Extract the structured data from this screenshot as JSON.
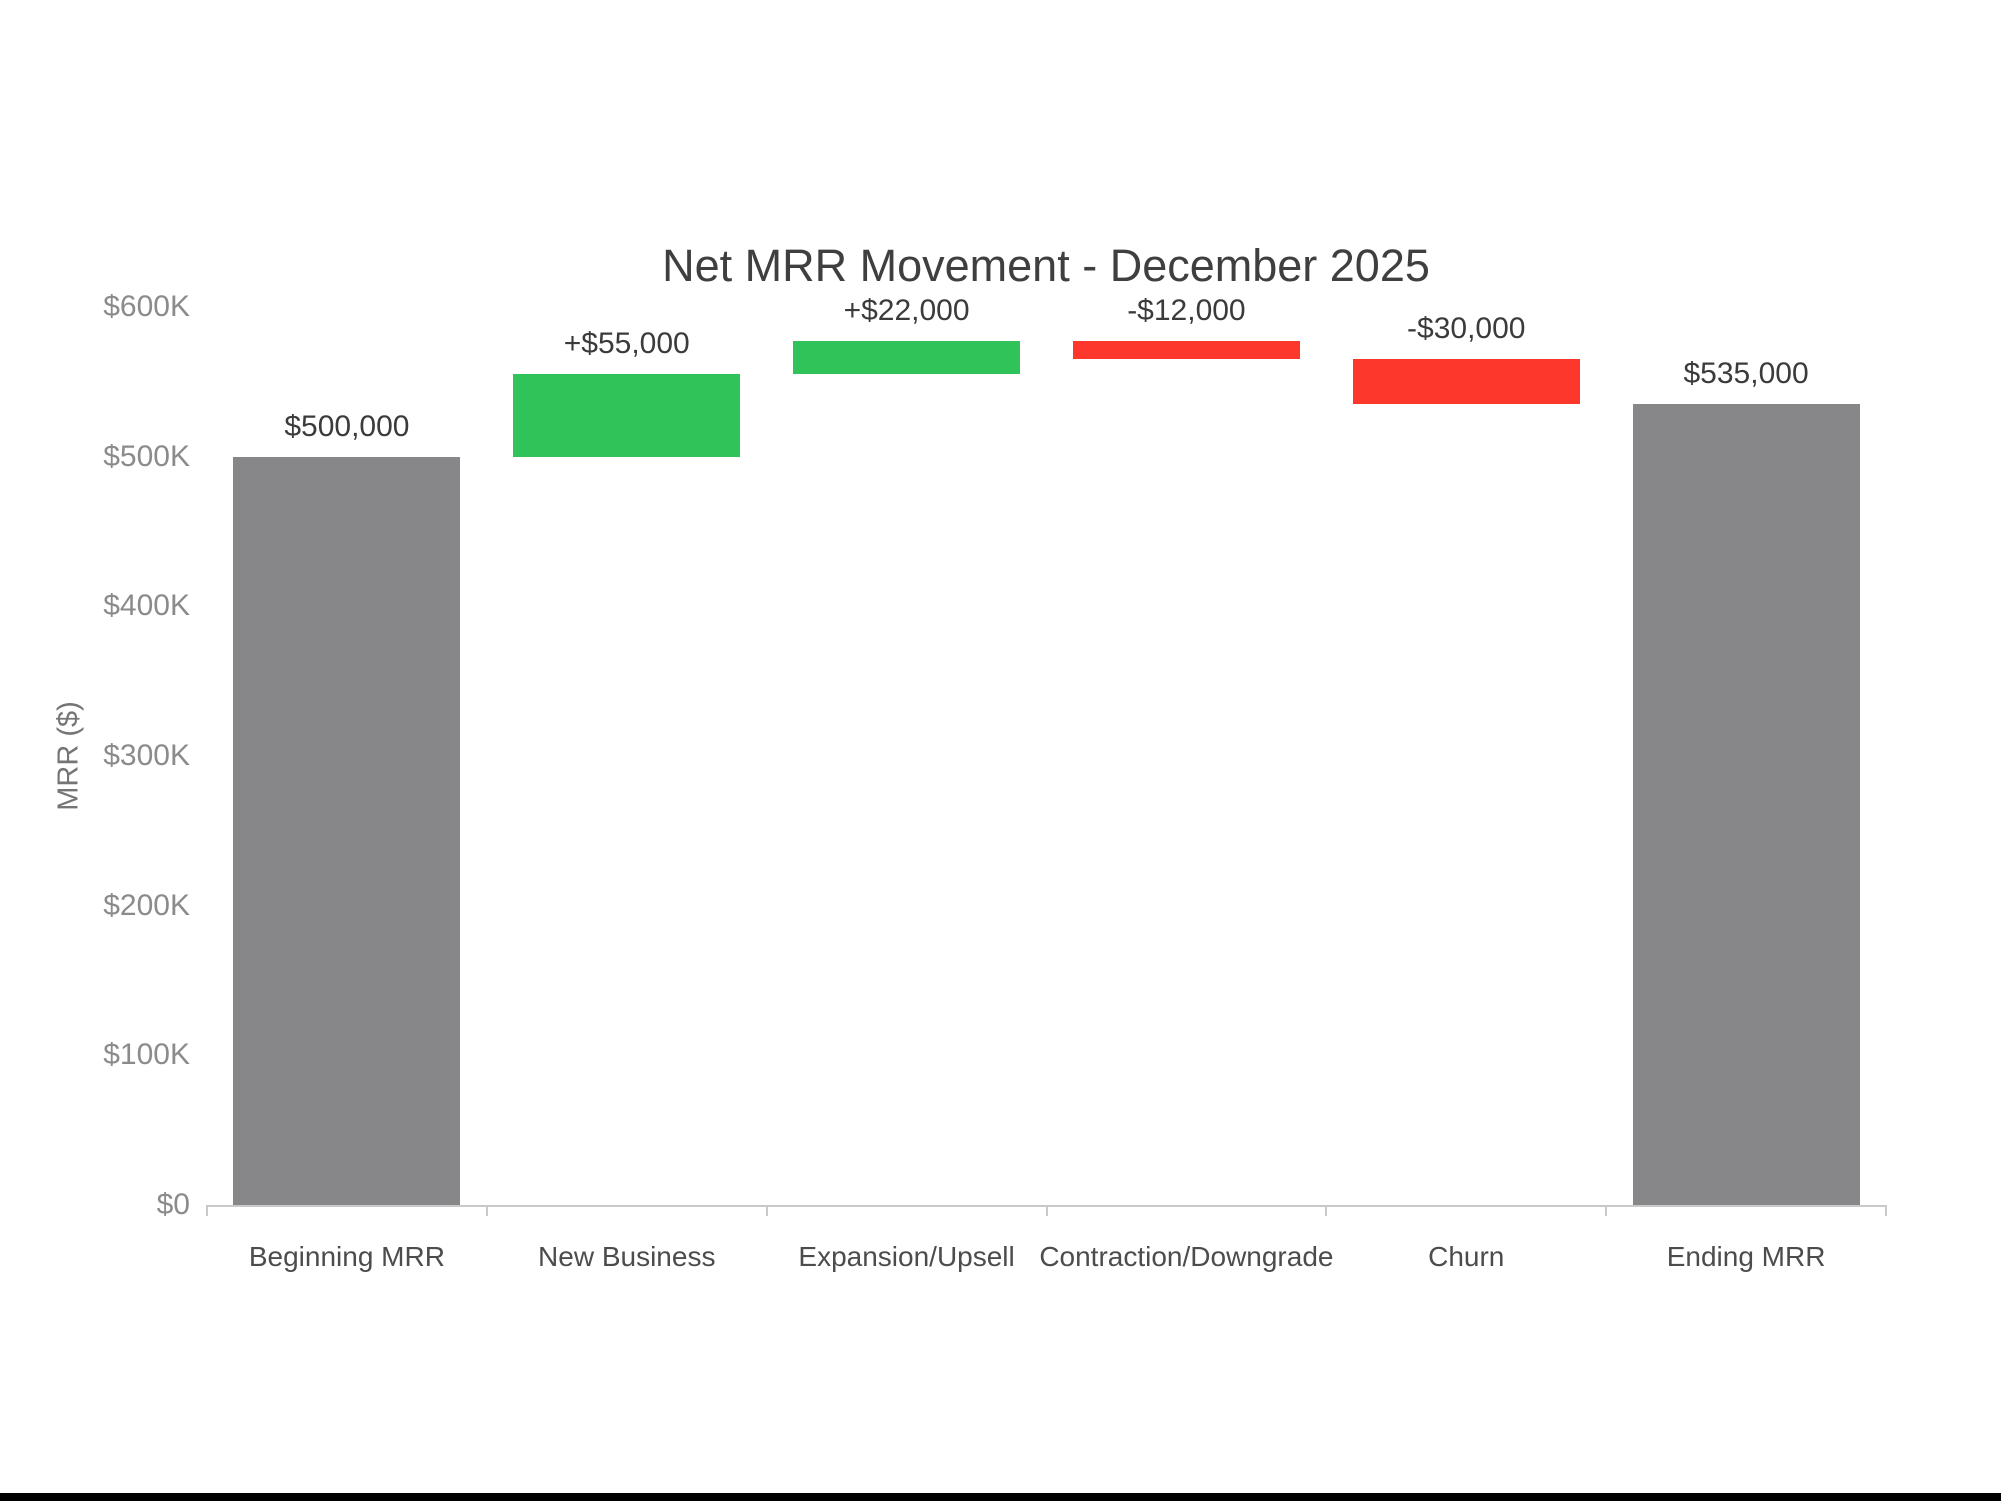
{
  "chart_data": {
    "type": "bar",
    "subtype": "waterfall",
    "title": "Net MRR Movement - December 2025",
    "ylabel": "MRR ($)",
    "xlabel": "",
    "ylim": [
      0,
      600000
    ],
    "grid": false,
    "legend": false,
    "yticks": [
      {
        "label": "$0",
        "value": 0
      },
      {
        "label": "$100K",
        "value": 100000
      },
      {
        "label": "$200K",
        "value": 200000
      },
      {
        "label": "$300K",
        "value": 300000
      },
      {
        "label": "$400K",
        "value": 400000
      },
      {
        "label": "$500K",
        "value": 500000
      },
      {
        "label": "$600K",
        "value": 600000
      }
    ],
    "categories": [
      "Beginning MRR",
      "New Business",
      "Expansion/Upsell",
      "Contraction/Downgrade",
      "Churn",
      "Ending MRR"
    ],
    "bars": [
      {
        "category": "Beginning MRR",
        "start": 0,
        "end": 500000,
        "delta": 500000,
        "role": "total",
        "label": "$500,000"
      },
      {
        "category": "New Business",
        "start": 500000,
        "end": 555000,
        "delta": 55000,
        "role": "increase",
        "label": "+$55,000"
      },
      {
        "category": "Expansion/Upsell",
        "start": 555000,
        "end": 577000,
        "delta": 22000,
        "role": "increase",
        "label": "+$22,000"
      },
      {
        "category": "Contraction/Downgrade",
        "start": 577000,
        "end": 565000,
        "delta": -12000,
        "role": "decrease",
        "label": "-$12,000"
      },
      {
        "category": "Churn",
        "start": 565000,
        "end": 535000,
        "delta": -30000,
        "role": "decrease",
        "label": "-$30,000"
      },
      {
        "category": "Ending MRR",
        "start": 0,
        "end": 535000,
        "delta": 535000,
        "role": "total",
        "label": "$535,000"
      }
    ],
    "colors": {
      "total": "#87878a",
      "increase": "#2fc35a",
      "decrease": "#fd372c",
      "axis": "#c9c9c9",
      "title_text": "#3f3f3f",
      "value_label_text": "#3b3b3b",
      "tick_label_text": "#8b8b8b",
      "category_label_text": "#4c4c4c"
    }
  }
}
